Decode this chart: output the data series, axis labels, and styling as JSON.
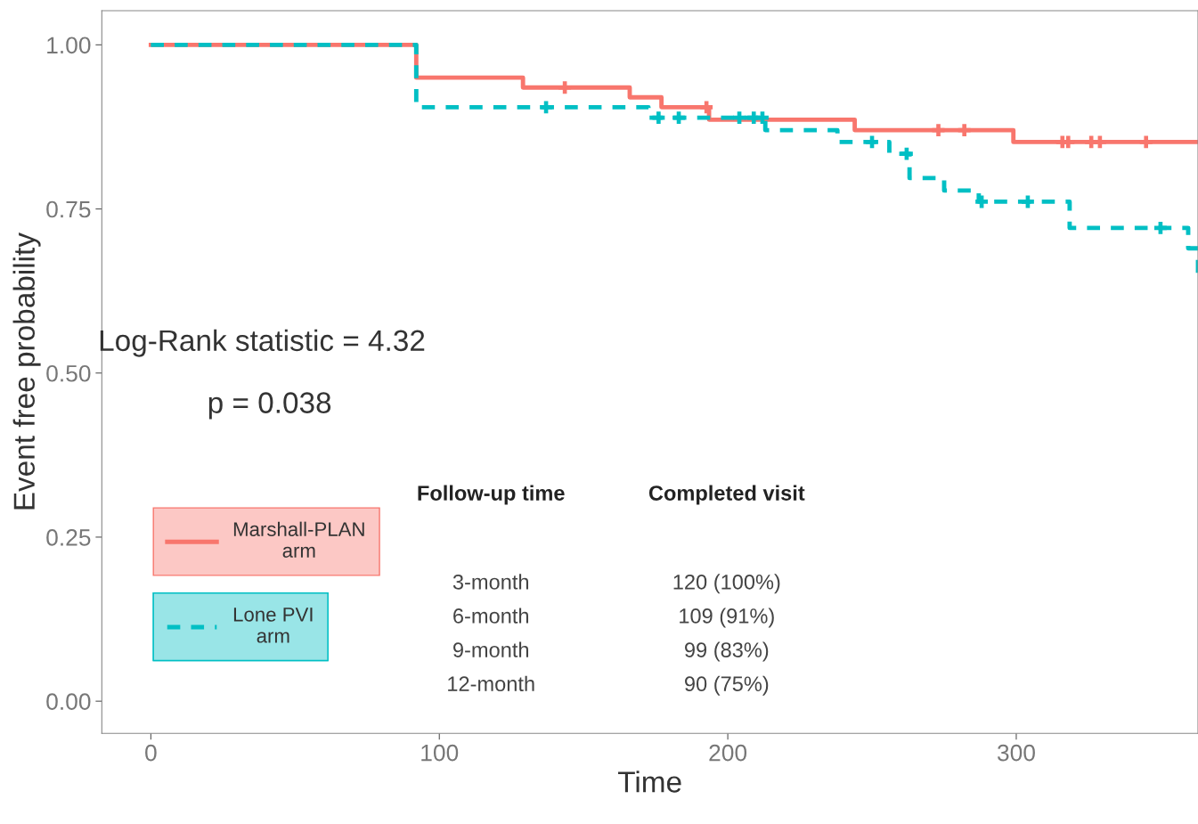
{
  "chart_data": {
    "type": "step",
    "xlabel": "Time",
    "ylabel": "Event free probability",
    "xlim": [
      -17,
      363
    ],
    "ylim": [
      -0.049,
      1.052
    ],
    "xticks": [
      0,
      100,
      200,
      300
    ],
    "yticks": [
      {
        "value": 0,
        "label": "0.00"
      },
      {
        "value": 0.25,
        "label": "0.25"
      },
      {
        "value": 0.5,
        "label": "0.50"
      },
      {
        "value": 0.75,
        "label": "0.75"
      },
      {
        "value": 1,
        "label": "1.00"
      }
    ],
    "legend": "bottom left",
    "grid": false,
    "series": [
      {
        "name": "Marshall-PLAN\narm",
        "color": "#f8766d",
        "line_style": "solid",
        "x": [
          0,
          92,
          129,
          166,
          177,
          193.5,
          244,
          299,
          363
        ],
        "values": [
          1.0,
          0.95,
          0.935,
          0.92,
          0.905,
          0.886,
          0.87,
          0.852,
          0.852
        ]
      },
      {
        "name": "Lone PVI\narm",
        "color": "#00bfc4",
        "line_style": "dashed",
        "x": [
          0,
          92,
          172.5,
          213,
          238,
          256,
          263,
          275,
          287,
          318.5,
          359.6,
          363
        ],
        "values": [
          1.0,
          0.905,
          0.889,
          0.87,
          0.852,
          0.834,
          0.797,
          0.778,
          0.761,
          0.721,
          0.69,
          0.643
        ]
      },
      {
        "type": "scatter",
        "color": "#f8766d",
        "marker": "cross",
        "x": [
          143.5,
          192.6,
          273,
          282,
          316,
          318,
          326,
          329,
          345
        ],
        "values": [
          0.935,
          0.905,
          0.87,
          0.87,
          0.852,
          0.852,
          0.852,
          0.852,
          0.852
        ]
      },
      {
        "type": "scatter",
        "color": "#00bfc4",
        "marker": "cross",
        "x": [
          137,
          176,
          183,
          204,
          209,
          212,
          250,
          262,
          288,
          304,
          350
        ],
        "values": [
          0.905,
          0.889,
          0.889,
          0.889,
          0.889,
          0.889,
          0.852,
          0.834,
          0.761,
          0.761,
          0.721
        ]
      }
    ],
    "annotations": [
      "Log-Rank statistic = 4.32",
      "p = 0.038",
      "Follow-up time",
      "Completed visit",
      "3-month",
      "120 (100%)",
      "6-month",
      "109 (91%)",
      "9-month",
      "99 (83%)",
      "12-month",
      "90 (75%)"
    ]
  }
}
